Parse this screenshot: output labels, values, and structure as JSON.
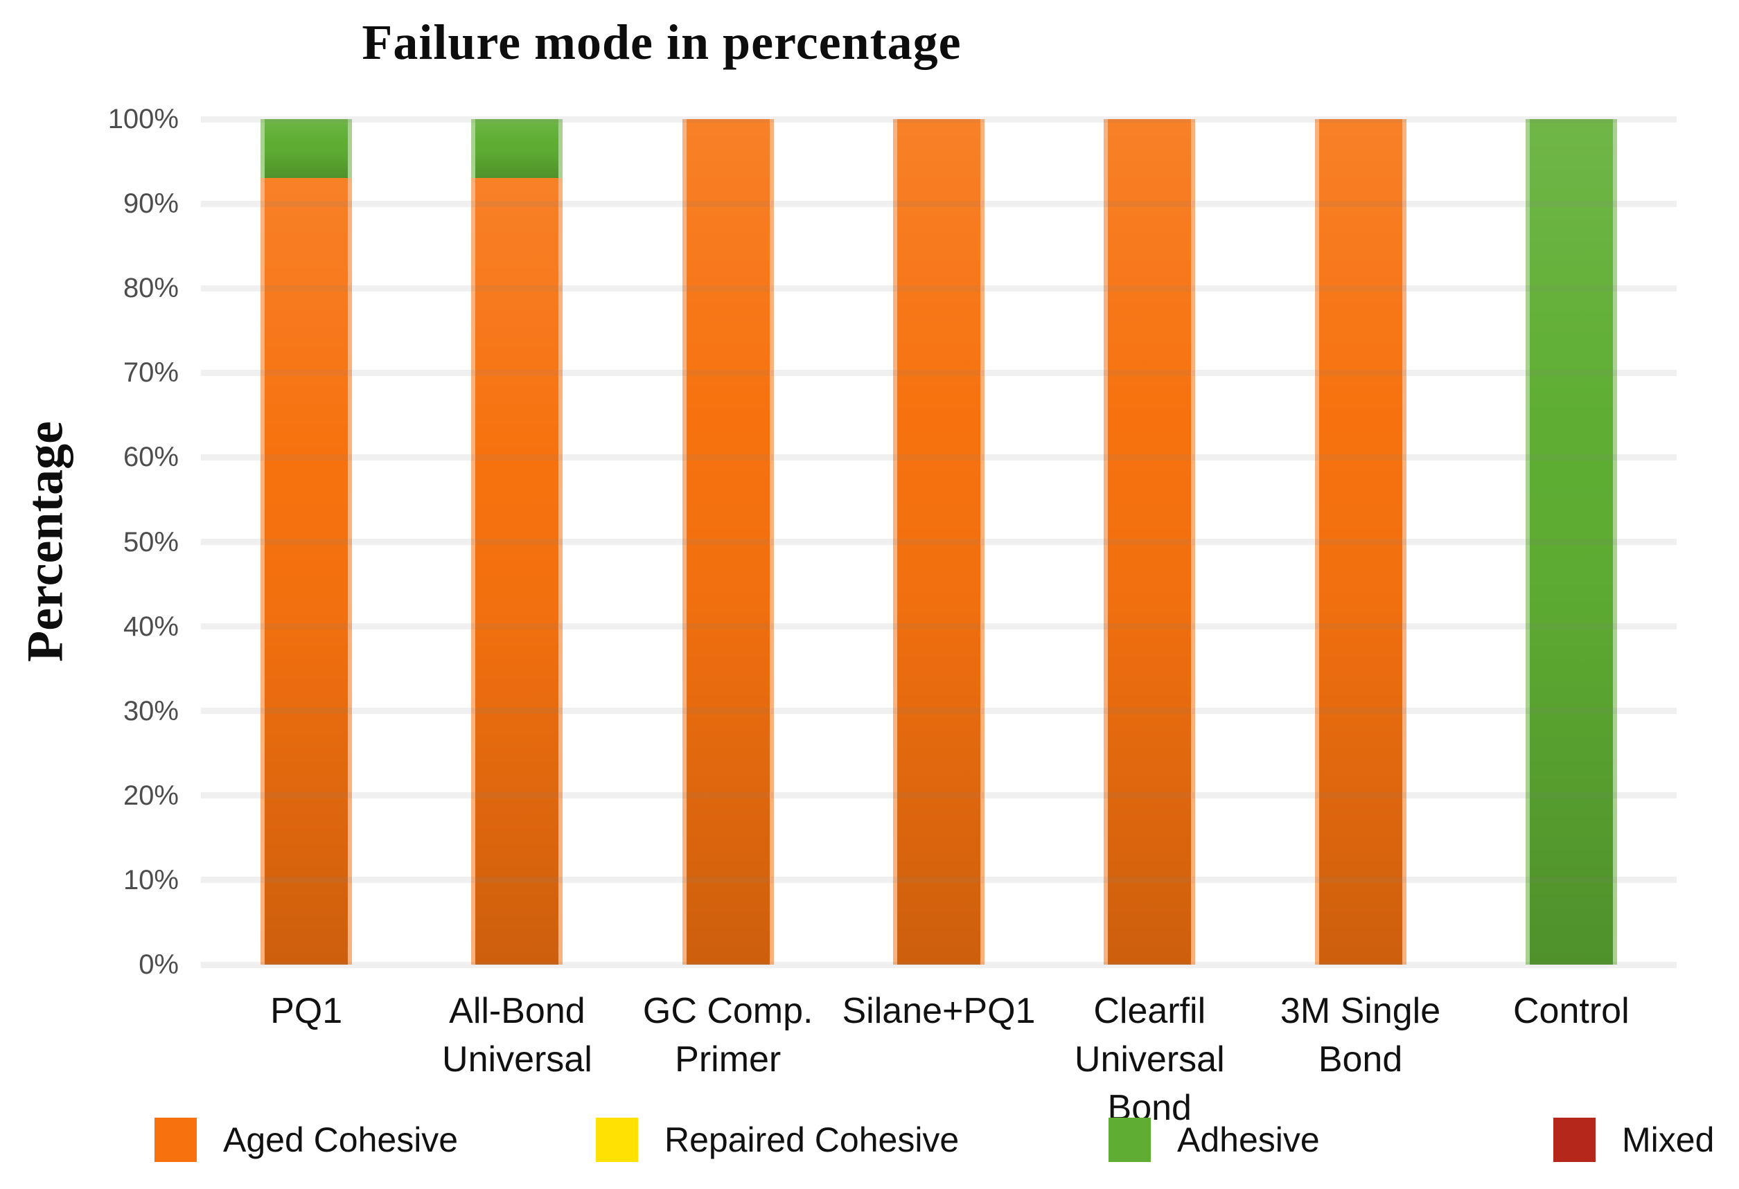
{
  "chart_data": {
    "type": "bar",
    "stacked": true,
    "orientation": "vertical",
    "title": "Failure mode in percentage",
    "xlabel": "",
    "ylabel": "Percentage",
    "ylim": [
      0,
      100
    ],
    "grid": true,
    "legend_position": "bottom",
    "yticks": [
      "100%",
      "90%",
      "80%",
      "70%",
      "60%",
      "50%",
      "40%",
      "30%",
      "20%",
      "10%",
      "0%"
    ],
    "categories": [
      "PQ1",
      "All-Bond Universal",
      "GC Comp. Primer",
      "Silane+PQ1",
      "Clearfil Universal Bond",
      "3M Single Bond",
      "Control"
    ],
    "category_labels": [
      [
        "PQ1"
      ],
      [
        "All-Bond",
        "Universal"
      ],
      [
        "GC Comp.",
        "Primer"
      ],
      [
        "Silane+PQ1"
      ],
      [
        "Clearfil",
        "Universal Bond"
      ],
      [
        "3M Single",
        "Bond"
      ],
      [
        "Control"
      ]
    ],
    "series": [
      {
        "name": "Aged Cohesive",
        "color": "#f7720f",
        "values": [
          93,
          93,
          100,
          100,
          100,
          100,
          0
        ]
      },
      {
        "name": "Repaired Cohesive",
        "color": "#ffe103",
        "values": [
          0,
          0,
          0,
          0,
          0,
          0,
          0
        ]
      },
      {
        "name": "Adhesive",
        "color": "#5fae33",
        "values": [
          7,
          7,
          0,
          0,
          0,
          0,
          100
        ]
      },
      {
        "name": "Mixed",
        "color": "#b5271b",
        "values": [
          0,
          0,
          0,
          0,
          0,
          0,
          0
        ]
      }
    ],
    "colors": {
      "gridline": "#ececec",
      "tick_text": "#4d4d4d",
      "axis_text": "#111111",
      "title_text": "#0d0d0d"
    }
  }
}
